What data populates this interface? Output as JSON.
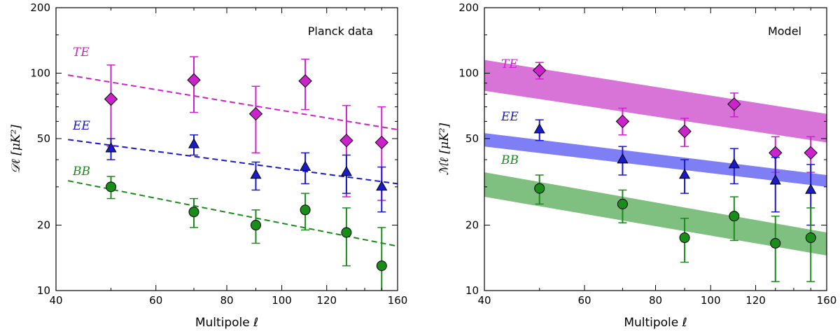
{
  "chart_data": [
    {
      "type": "scatter",
      "title": "Planck data",
      "xlabel": "Multipole ℓ",
      "ylabel": "𝒟ℓ [μK²]",
      "xscale": "log",
      "yscale": "log",
      "xlim": [
        40,
        160
      ],
      "ylim": [
        10,
        200
      ],
      "xticks": [
        40,
        60,
        80,
        100,
        120,
        160
      ],
      "yticks": [
        10,
        20,
        50,
        100,
        200
      ],
      "series": [
        {
          "name": "TE",
          "label": "TE",
          "color": "#cc22cc",
          "marker": "diamond",
          "x": [
            50,
            70,
            90,
            110,
            130,
            150
          ],
          "y": [
            76,
            93,
            65,
            92,
            49,
            48
          ],
          "yerr_low": [
            30,
            27,
            22,
            24,
            22,
            22
          ],
          "yerr_high": [
            33,
            26,
            22,
            24,
            22,
            22
          ],
          "fit": {
            "style": "dashed",
            "x": [
              42,
              160
            ],
            "y": [
              98,
              55
            ]
          }
        },
        {
          "name": "EE",
          "label": "EE",
          "color": "#1a1acc",
          "marker": "triangle",
          "x": [
            50,
            70,
            90,
            110,
            130,
            150
          ],
          "y": [
            45,
            47,
            34,
            37,
            35,
            30
          ],
          "yerr_low": [
            5,
            5,
            5,
            6,
            7,
            7
          ],
          "yerr_high": [
            5,
            5,
            5,
            6,
            7,
            7
          ],
          "fit": {
            "style": "dashed",
            "x": [
              42,
              160
            ],
            "y": [
              49.5,
              31
            ]
          }
        },
        {
          "name": "BB",
          "label": "BB",
          "color": "#1a8c1a",
          "marker": "circle",
          "x": [
            50,
            70,
            90,
            110,
            130,
            150
          ],
          "y": [
            30,
            23,
            20,
            23.5,
            18.5,
            13
          ],
          "yerr_low": [
            3.5,
            3.5,
            3.5,
            4.5,
            5.5,
            4
          ],
          "yerr_high": [
            3.5,
            3.5,
            3.5,
            4.5,
            5.5,
            6.5
          ],
          "fit": {
            "style": "dashed",
            "x": [
              42,
              160
            ],
            "y": [
              32,
              16
            ]
          }
        }
      ]
    },
    {
      "type": "scatter",
      "title": "Model",
      "xlabel": "Multipole ℓ",
      "ylabel": "ℳℓ [μK²]",
      "xscale": "log",
      "yscale": "log",
      "xlim": [
        40,
        160
      ],
      "ylim": [
        10,
        200
      ],
      "xticks": [
        40,
        60,
        80,
        100,
        120,
        160
      ],
      "yticks": [
        10,
        20,
        50,
        100,
        200
      ],
      "series": [
        {
          "name": "TE",
          "label": "TE",
          "color": "#cc22cc",
          "band_color": "#d874d8",
          "marker": "diamond",
          "x": [
            50,
            70,
            90,
            110,
            130,
            150
          ],
          "y": [
            103,
            60,
            54,
            72,
            43,
            43
          ],
          "yerr_low": [
            9,
            8,
            8,
            9,
            8,
            8
          ],
          "yerr_high": [
            9,
            9,
            8,
            9,
            8,
            8
          ],
          "band": {
            "x": [
              40,
              160
            ],
            "low": [
              83,
              48
            ],
            "high": [
              115,
              65
            ]
          }
        },
        {
          "name": "EE",
          "label": "EE",
          "color": "#1a1acc",
          "band_color": "#7f7ff5",
          "marker": "triangle",
          "x": [
            50,
            70,
            90,
            110,
            130,
            150
          ],
          "y": [
            55,
            40,
            34,
            38,
            32,
            29
          ],
          "yerr_low": [
            6,
            6,
            6,
            7,
            9,
            9
          ],
          "yerr_high": [
            6,
            6,
            6,
            7,
            9,
            9
          ],
          "band": {
            "x": [
              40,
              160
            ],
            "low": [
              46,
              30
            ],
            "high": [
              53,
              34
            ]
          }
        },
        {
          "name": "BB",
          "label": "BB",
          "color": "#1a8c1a",
          "band_color": "#7fbf7f",
          "marker": "circle",
          "x": [
            50,
            70,
            90,
            110,
            130,
            150
          ],
          "y": [
            29.5,
            25,
            17.5,
            22,
            16.5,
            17.5
          ],
          "yerr_low": [
            4.5,
            4.5,
            4,
            5,
            5.5,
            6.5
          ],
          "yerr_high": [
            4.5,
            4,
            4,
            5,
            5.5,
            6.5
          ],
          "band": {
            "x": [
              40,
              160
            ],
            "low": [
              27,
              14.5
            ],
            "high": [
              35,
              18.5
            ]
          }
        }
      ]
    }
  ]
}
